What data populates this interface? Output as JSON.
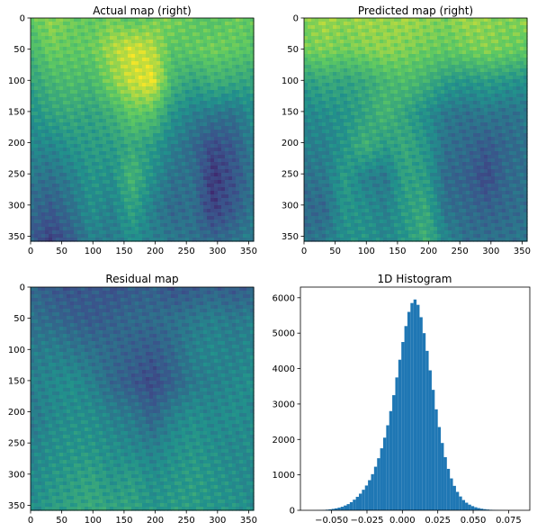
{
  "colormap": [
    "#440154",
    "#3b528b",
    "#21918c",
    "#5ec962",
    "#fde725"
  ],
  "axis_color": "#000000",
  "hist_color": "#1f77b4",
  "chart_data": [
    {
      "type": "heatmap",
      "title": "Actual map (right)",
      "xticks": [
        0,
        50,
        100,
        150,
        200,
        250,
        300,
        350
      ],
      "yticks": [
        0,
        50,
        100,
        150,
        200,
        250,
        300,
        350
      ],
      "xlim": [
        0,
        358
      ],
      "ylim": [
        358,
        0
      ],
      "value_range": [
        0.2,
        0.9
      ],
      "grid": [
        [
          0.72,
          0.78,
          0.74,
          0.72,
          0.75,
          0.7,
          0.74,
          0.76,
          0.72,
          0.7,
          0.74,
          0.72
        ],
        [
          0.66,
          0.74,
          0.72,
          0.73,
          0.8,
          0.86,
          0.82,
          0.7,
          0.72,
          0.74,
          0.72,
          0.7
        ],
        [
          0.6,
          0.66,
          0.68,
          0.66,
          0.76,
          0.84,
          0.88,
          0.66,
          0.6,
          0.64,
          0.62,
          0.6
        ],
        [
          0.55,
          0.6,
          0.62,
          0.6,
          0.64,
          0.72,
          0.7,
          0.56,
          0.5,
          0.48,
          0.46,
          0.54
        ],
        [
          0.52,
          0.52,
          0.56,
          0.58,
          0.58,
          0.62,
          0.58,
          0.5,
          0.44,
          0.36,
          0.4,
          0.5
        ],
        [
          0.48,
          0.46,
          0.5,
          0.56,
          0.54,
          0.66,
          0.54,
          0.46,
          0.46,
          0.32,
          0.38,
          0.48
        ],
        [
          0.44,
          0.4,
          0.46,
          0.54,
          0.5,
          0.6,
          0.5,
          0.44,
          0.46,
          0.34,
          0.4,
          0.48
        ],
        [
          0.4,
          0.34,
          0.4,
          0.5,
          0.48,
          0.54,
          0.5,
          0.48,
          0.46,
          0.44,
          0.46,
          0.5
        ]
      ]
    },
    {
      "type": "heatmap",
      "title": "Predicted map (right)",
      "xticks": [
        0,
        50,
        100,
        150,
        200,
        250,
        300,
        350
      ],
      "yticks": [
        0,
        50,
        100,
        150,
        200,
        250,
        300,
        350
      ],
      "xlim": [
        0,
        358
      ],
      "ylim": [
        358,
        0
      ],
      "value_range": [
        0.2,
        0.9
      ],
      "grid": [
        [
          0.76,
          0.8,
          0.78,
          0.8,
          0.78,
          0.8,
          0.78,
          0.76,
          0.8,
          0.78,
          0.76,
          0.78
        ],
        [
          0.74,
          0.76,
          0.74,
          0.76,
          0.78,
          0.76,
          0.74,
          0.72,
          0.74,
          0.76,
          0.74,
          0.72
        ],
        [
          0.58,
          0.62,
          0.6,
          0.62,
          0.66,
          0.68,
          0.64,
          0.58,
          0.56,
          0.58,
          0.56,
          0.54
        ],
        [
          0.52,
          0.54,
          0.56,
          0.6,
          0.66,
          0.6,
          0.54,
          0.48,
          0.46,
          0.48,
          0.46,
          0.48
        ],
        [
          0.5,
          0.5,
          0.56,
          0.64,
          0.58,
          0.62,
          0.56,
          0.46,
          0.44,
          0.4,
          0.44,
          0.46
        ],
        [
          0.46,
          0.48,
          0.58,
          0.5,
          0.48,
          0.6,
          0.58,
          0.44,
          0.42,
          0.36,
          0.44,
          0.46
        ],
        [
          0.44,
          0.44,
          0.56,
          0.54,
          0.5,
          0.58,
          0.62,
          0.46,
          0.44,
          0.42,
          0.44,
          0.46
        ],
        [
          0.46,
          0.48,
          0.54,
          0.56,
          0.52,
          0.56,
          0.64,
          0.52,
          0.46,
          0.46,
          0.46,
          0.48
        ]
      ]
    },
    {
      "type": "heatmap",
      "title": "Residual map",
      "xticks": [
        0,
        50,
        100,
        150,
        200,
        250,
        300,
        350
      ],
      "yticks": [
        0,
        50,
        100,
        150,
        200,
        250,
        300,
        350
      ],
      "xlim": [
        0,
        358
      ],
      "ylim": [
        358,
        0
      ],
      "value_range": [
        0.2,
        0.9
      ],
      "grid": [
        [
          0.44,
          0.4,
          0.38,
          0.4,
          0.38,
          0.4,
          0.42,
          0.38,
          0.4,
          0.42,
          0.4,
          0.42
        ],
        [
          0.46,
          0.44,
          0.42,
          0.4,
          0.42,
          0.44,
          0.44,
          0.46,
          0.48,
          0.5,
          0.48,
          0.5
        ],
        [
          0.48,
          0.5,
          0.48,
          0.46,
          0.44,
          0.42,
          0.4,
          0.44,
          0.5,
          0.52,
          0.5,
          0.52
        ],
        [
          0.5,
          0.52,
          0.54,
          0.5,
          0.44,
          0.4,
          0.36,
          0.42,
          0.48,
          0.5,
          0.52,
          0.54
        ],
        [
          0.48,
          0.52,
          0.54,
          0.54,
          0.5,
          0.48,
          0.42,
          0.5,
          0.54,
          0.52,
          0.54,
          0.52
        ],
        [
          0.5,
          0.54,
          0.56,
          0.56,
          0.54,
          0.52,
          0.5,
          0.54,
          0.56,
          0.54,
          0.52,
          0.54
        ],
        [
          0.52,
          0.56,
          0.58,
          0.6,
          0.56,
          0.58,
          0.54,
          0.56,
          0.58,
          0.56,
          0.54,
          0.52
        ],
        [
          0.54,
          0.58,
          0.6,
          0.62,
          0.6,
          0.6,
          0.56,
          0.58,
          0.58,
          0.56,
          0.56,
          0.54
        ]
      ]
    },
    {
      "type": "bar",
      "title": "1D Histogram",
      "xlim": [
        -0.072,
        0.09
      ],
      "ylim": [
        0,
        6300
      ],
      "xticks": [
        -0.05,
        -0.025,
        0.0,
        0.025,
        0.05,
        0.075
      ],
      "xtick_labels": [
        "−0.050",
        "−0.025",
        "0.000",
        "0.025",
        "0.050",
        "0.075"
      ],
      "yticks": [
        0,
        1000,
        2000,
        3000,
        4000,
        5000,
        6000
      ],
      "ytick_labels": [
        "0",
        "1000",
        "2000",
        "3000",
        "4000",
        "5000",
        "6000"
      ],
      "bin_range": [
        -0.065,
        0.085
      ],
      "counts": [
        1,
        2,
        4,
        6,
        10,
        18,
        28,
        40,
        55,
        75,
        100,
        135,
        175,
        230,
        300,
        380,
        470,
        580,
        700,
        850,
        1020,
        1230,
        1470,
        1750,
        2050,
        2400,
        2800,
        3250,
        3750,
        4250,
        4750,
        5200,
        5600,
        5850,
        5950,
        5800,
        5450,
        5000,
        4500,
        3950,
        3400,
        2850,
        2350,
        1900,
        1500,
        1170,
        900,
        690,
        520,
        390,
        290,
        215,
        160,
        118,
        86,
        62,
        45,
        32,
        22,
        15,
        10,
        7,
        5,
        3,
        2,
        2,
        1,
        1,
        1,
        1
      ]
    }
  ]
}
